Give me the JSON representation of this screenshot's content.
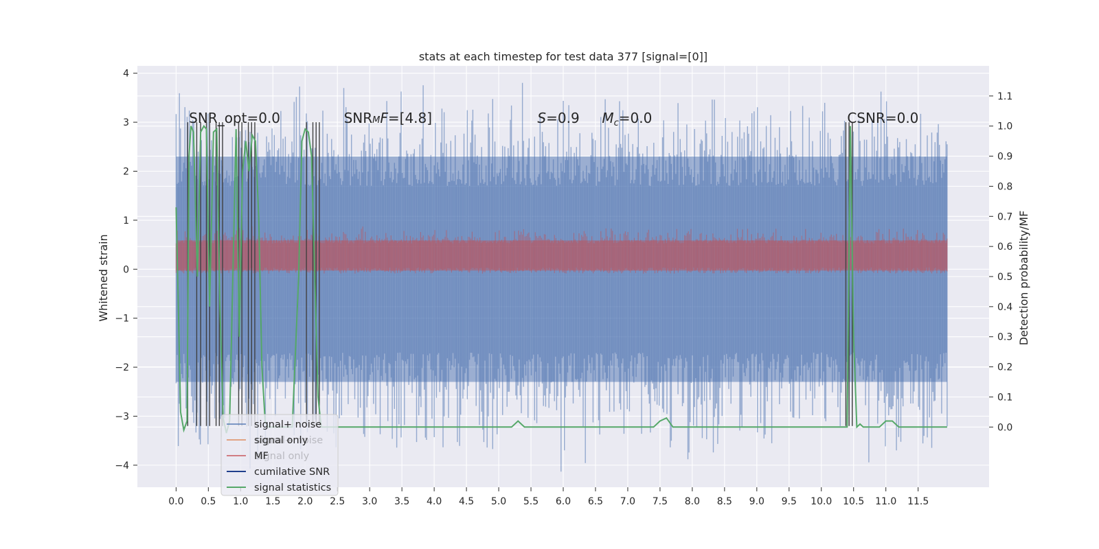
{
  "chart_data": {
    "type": "line",
    "title": "stats at each timestep for test data 377 [signal=[0]]",
    "ylabel": "Whitened strain",
    "y2label": "Detection probability/MF",
    "xlim": [
      -0.6,
      12.6
    ],
    "ylim": [
      -4.45,
      4.15
    ],
    "y2lim": [
      -0.2,
      1.2
    ],
    "x_ticks": [
      "0.0",
      "0.5",
      "1.0",
      "1.5",
      "2.0",
      "2.5",
      "3.0",
      "3.5",
      "4.0",
      "4.5",
      "5.0",
      "5.5",
      "6.0",
      "6.5",
      "7.0",
      "7.5",
      "8.0",
      "8.5",
      "9.0",
      "9.5",
      "10.0",
      "10.5",
      "11.0",
      "11.5"
    ],
    "y_ticks": [
      "4",
      "3",
      "2",
      "1",
      "0",
      "−1",
      "−2",
      "−3",
      "−4"
    ],
    "y2_ticks": [
      "1.1",
      "1.0",
      "0.9",
      "0.8",
      "0.7",
      "0.6",
      "0.5",
      "0.4",
      "0.3",
      "0.2",
      "0.1",
      "0.0"
    ],
    "grid": true,
    "legend_position": "lower-left",
    "colors": {
      "background": "#eaeaf2",
      "grid": "#ffffff",
      "signal_noise": "#4c72b0",
      "signal_only": "#dd8452",
      "mf": "#c44e52",
      "cumulative_snr": "#1f3f8c",
      "signal_statistics": "#55a868",
      "markers": "#404040"
    },
    "annotations": [
      {
        "text": "SNR_opt=0.0",
        "x": 0.2
      },
      {
        "html": "SNR<tspan font-style='italic' font-size='13'>M</tspan><tspan font-style='italic'>F</tspan>=[4.8]",
        "x": 2.6
      },
      {
        "html": "<tspan font-style='italic'>S</tspan>=0.9",
        "x": 5.6
      },
      {
        "html": "<tspan font-style='italic'>M</tspan><tspan font-style='italic' font-size='13' dy='4'>c</tspan><tspan dy='-4'>=0.0</tspan>",
        "x": 6.6
      },
      {
        "text": "CSNR=0.0",
        "x": 10.4
      }
    ],
    "series": [
      {
        "name": "signal+ noise",
        "axis": "left",
        "description": "whitened strain, roughly uniform band between about -2.3 and 2.3 with peaks up to ~3.8 and down to ~-4.1",
        "x_range": [
          0.0,
          11.95
        ],
        "band": [
          -2.3,
          2.3
        ]
      },
      {
        "name": "signal only",
        "axis": "left",
        "values_note": "approximately zero throughout"
      },
      {
        "name": "MF",
        "axis": "right",
        "description": "matched filter output, band roughly 0.52 to 0.62",
        "x_range": [
          0.0,
          11.95
        ],
        "band": [
          0.52,
          0.62
        ]
      },
      {
        "name": "cumilative SNR",
        "axis": "right",
        "values_note": "not distinguishable"
      },
      {
        "name": "signal statistics",
        "axis": "right",
        "x": [
          0.0,
          0.03,
          0.07,
          0.12,
          0.17,
          0.2,
          0.23,
          0.27,
          0.33,
          0.38,
          0.43,
          0.47,
          0.52,
          0.58,
          0.63,
          0.68,
          0.73,
          0.78,
          0.83,
          0.88,
          0.93,
          0.98,
          1.03,
          1.08,
          1.13,
          1.18,
          1.23,
          1.28,
          1.33,
          1.38,
          1.43,
          1.5,
          1.6,
          1.7,
          1.8,
          1.9,
          1.95,
          2.0,
          2.05,
          2.1,
          2.15,
          2.2,
          2.25,
          2.3,
          2.35,
          2.4,
          2.5,
          3.0,
          3.5,
          4.0,
          4.5,
          5.0,
          5.2,
          5.3,
          5.4,
          5.5,
          6.0,
          6.5,
          7.0,
          7.4,
          7.5,
          7.6,
          7.7,
          7.8,
          8.0,
          8.5,
          9.0,
          9.5,
          10.0,
          10.3,
          10.4,
          10.45,
          10.5,
          10.55,
          10.6,
          10.65,
          10.7,
          10.8,
          10.9,
          11.0,
          11.05,
          11.1,
          11.2,
          11.5,
          11.95
        ],
        "y": [
          0.73,
          0.45,
          0.05,
          -0.01,
          0.02,
          0.9,
          1.0,
          0.98,
          0.5,
          0.98,
          1.0,
          0.99,
          0.4,
          0.98,
          0.99,
          0.4,
          0.03,
          -0.02,
          0.02,
          0.5,
          0.99,
          0.3,
          0.85,
          0.95,
          0.85,
          0.97,
          0.95,
          0.7,
          0.2,
          0.02,
          0.0,
          0.0,
          0.0,
          0.0,
          0.0,
          0.5,
          0.95,
          0.99,
          0.98,
          0.9,
          0.5,
          0.1,
          0.0,
          0.0,
          0.0,
          0.0,
          0.0,
          0.0,
          0.0,
          0.0,
          0.0,
          0.0,
          0.0,
          0.02,
          0.0,
          0.0,
          0.0,
          0.0,
          0.0,
          0.0,
          0.02,
          0.03,
          0.0,
          0.0,
          0.0,
          0.0,
          0.0,
          0.0,
          0.0,
          0.0,
          0.0,
          1.0,
          0.3,
          0.0,
          0.01,
          0.0,
          0.0,
          0.0,
          0.0,
          0.02,
          0.02,
          0.02,
          0.0,
          0.0,
          0.0
        ]
      }
    ],
    "markers_x": [
      0.18,
      0.32,
      0.38,
      0.47,
      0.52,
      0.62,
      0.67,
      0.72,
      0.97,
      1.02,
      1.12,
      1.17,
      1.22,
      2.02,
      2.12,
      2.17,
      2.22,
      10.38,
      10.43,
      10.48
    ],
    "legend": [
      "signal+ noise",
      "signal only",
      "MF",
      "cumilative SNR",
      "signal statistics"
    ],
    "ghost_legend": [
      "signal+ noise",
      "signal only"
    ]
  }
}
